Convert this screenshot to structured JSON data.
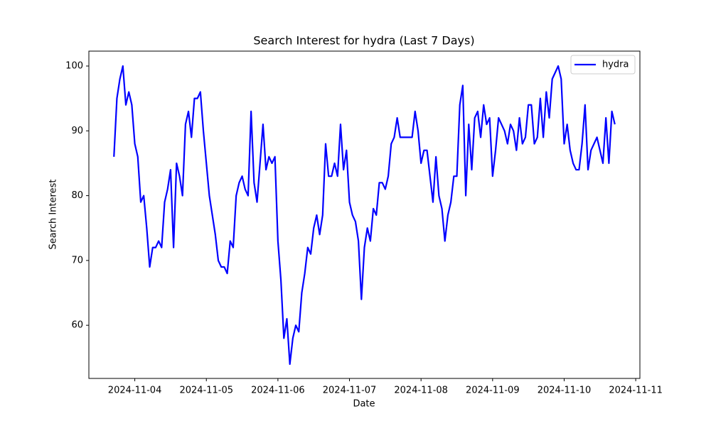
{
  "chart_data": {
    "type": "line",
    "title": "Search Interest for hydra (Last 7 Days)",
    "xlabel": "Date",
    "ylabel": "Search Interest",
    "x": [
      "2024-11-03T17:00",
      "2024-11-03T18:00",
      "2024-11-03T19:00",
      "2024-11-03T20:00",
      "2024-11-03T21:00",
      "2024-11-03T22:00",
      "2024-11-03T23:00",
      "2024-11-04T00:00",
      "2024-11-04T01:00",
      "2024-11-04T02:00",
      "2024-11-04T03:00",
      "2024-11-04T04:00",
      "2024-11-04T05:00",
      "2024-11-04T06:00",
      "2024-11-04T07:00",
      "2024-11-04T08:00",
      "2024-11-04T09:00",
      "2024-11-04T10:00",
      "2024-11-04T11:00",
      "2024-11-04T12:00",
      "2024-11-04T13:00",
      "2024-11-04T14:00",
      "2024-11-04T15:00",
      "2024-11-04T16:00",
      "2024-11-04T17:00",
      "2024-11-04T18:00",
      "2024-11-04T19:00",
      "2024-11-04T20:00",
      "2024-11-04T21:00",
      "2024-11-04T22:00",
      "2024-11-04T23:00",
      "2024-11-05T00:00",
      "2024-11-05T01:00",
      "2024-11-05T02:00",
      "2024-11-05T03:00",
      "2024-11-05T04:00",
      "2024-11-05T05:00",
      "2024-11-05T06:00",
      "2024-11-05T07:00",
      "2024-11-05T08:00",
      "2024-11-05T09:00",
      "2024-11-05T10:00",
      "2024-11-05T11:00",
      "2024-11-05T12:00",
      "2024-11-05T13:00",
      "2024-11-05T14:00",
      "2024-11-05T15:00",
      "2024-11-05T16:00",
      "2024-11-05T17:00",
      "2024-11-05T18:00",
      "2024-11-05T19:00",
      "2024-11-05T20:00",
      "2024-11-05T21:00",
      "2024-11-05T22:00",
      "2024-11-05T23:00",
      "2024-11-06T00:00",
      "2024-11-06T01:00",
      "2024-11-06T02:00",
      "2024-11-06T03:00",
      "2024-11-06T04:00",
      "2024-11-06T05:00",
      "2024-11-06T06:00",
      "2024-11-06T07:00",
      "2024-11-06T08:00",
      "2024-11-06T09:00",
      "2024-11-06T10:00",
      "2024-11-06T11:00",
      "2024-11-06T12:00",
      "2024-11-06T13:00",
      "2024-11-06T14:00",
      "2024-11-06T15:00",
      "2024-11-06T16:00",
      "2024-11-06T17:00",
      "2024-11-06T18:00",
      "2024-11-06T19:00",
      "2024-11-06T20:00",
      "2024-11-06T21:00",
      "2024-11-06T22:00",
      "2024-11-06T23:00",
      "2024-11-07T00:00",
      "2024-11-07T01:00",
      "2024-11-07T02:00",
      "2024-11-07T03:00",
      "2024-11-07T04:00",
      "2024-11-07T05:00",
      "2024-11-07T06:00",
      "2024-11-07T07:00",
      "2024-11-07T08:00",
      "2024-11-07T09:00",
      "2024-11-07T10:00",
      "2024-11-07T11:00",
      "2024-11-07T12:00",
      "2024-11-07T13:00",
      "2024-11-07T14:00",
      "2024-11-07T15:00",
      "2024-11-07T16:00",
      "2024-11-07T17:00",
      "2024-11-07T18:00",
      "2024-11-07T19:00",
      "2024-11-07T20:00",
      "2024-11-07T21:00",
      "2024-11-07T22:00",
      "2024-11-07T23:00",
      "2024-11-08T00:00",
      "2024-11-08T01:00",
      "2024-11-08T02:00",
      "2024-11-08T03:00",
      "2024-11-08T04:00",
      "2024-11-08T05:00",
      "2024-11-08T06:00",
      "2024-11-08T07:00",
      "2024-11-08T08:00",
      "2024-11-08T09:00",
      "2024-11-08T10:00",
      "2024-11-08T11:00",
      "2024-11-08T12:00",
      "2024-11-08T13:00",
      "2024-11-08T14:00",
      "2024-11-08T15:00",
      "2024-11-08T16:00",
      "2024-11-08T17:00",
      "2024-11-08T18:00",
      "2024-11-08T19:00",
      "2024-11-08T20:00",
      "2024-11-08T21:00",
      "2024-11-08T22:00",
      "2024-11-08T23:00",
      "2024-11-09T00:00",
      "2024-11-09T01:00",
      "2024-11-09T02:00",
      "2024-11-09T03:00",
      "2024-11-09T04:00",
      "2024-11-09T05:00",
      "2024-11-09T06:00",
      "2024-11-09T07:00",
      "2024-11-09T08:00",
      "2024-11-09T09:00",
      "2024-11-09T10:00",
      "2024-11-09T11:00",
      "2024-11-09T12:00",
      "2024-11-09T13:00",
      "2024-11-09T14:00",
      "2024-11-09T15:00",
      "2024-11-09T16:00",
      "2024-11-09T17:00",
      "2024-11-09T18:00",
      "2024-11-09T19:00",
      "2024-11-09T20:00",
      "2024-11-09T21:00",
      "2024-11-09T22:00",
      "2024-11-09T23:00",
      "2024-11-10T00:00",
      "2024-11-10T01:00",
      "2024-11-10T02:00",
      "2024-11-10T03:00",
      "2024-11-10T04:00",
      "2024-11-10T05:00",
      "2024-11-10T06:00",
      "2024-11-10T07:00",
      "2024-11-10T08:00",
      "2024-11-10T09:00",
      "2024-11-10T10:00",
      "2024-11-10T11:00",
      "2024-11-10T12:00",
      "2024-11-10T13:00",
      "2024-11-10T14:00",
      "2024-11-10T15:00",
      "2024-11-10T16:00",
      "2024-11-10T17:00"
    ],
    "series": [
      {
        "name": "hydra",
        "color": "#0000ff",
        "values": [
          86,
          95,
          98,
          100,
          94,
          96,
          94,
          88,
          86,
          79,
          80,
          75,
          69,
          72,
          72,
          73,
          72,
          79,
          81,
          84,
          72,
          85,
          83,
          80,
          91,
          93,
          89,
          95,
          95,
          96,
          90,
          85,
          80,
          77,
          74,
          70,
          69,
          69,
          68,
          73,
          72,
          80,
          82,
          83,
          81,
          80,
          93,
          82,
          79,
          85,
          91,
          84,
          86,
          85,
          86,
          73,
          67,
          58,
          61,
          54,
          58,
          60,
          59,
          65,
          68,
          72,
          71,
          75,
          77,
          74,
          77,
          88,
          83,
          83,
          85,
          83,
          91,
          84,
          87,
          79,
          77,
          76,
          73,
          64,
          72,
          75,
          73,
          78,
          77,
          82,
          82,
          81,
          83,
          88,
          89,
          92,
          89,
          89,
          89,
          89,
          89,
          93,
          90,
          85,
          87,
          87,
          83,
          79,
          86,
          80,
          78,
          73,
          77,
          79,
          83,
          83,
          94,
          97,
          80,
          91,
          84,
          92,
          93,
          89,
          94,
          91,
          92,
          83,
          87,
          92,
          91,
          90,
          88,
          91,
          90,
          87,
          92,
          88,
          89,
          94,
          94,
          88,
          89,
          95,
          89,
          96,
          92,
          98,
          99,
          100,
          98,
          88,
          91,
          87,
          85,
          84,
          84,
          88,
          94,
          84,
          87,
          88,
          89,
          87,
          85,
          92,
          85,
          93,
          91
        ]
      }
    ],
    "xlim": [
      "2024-11-03T08:36",
      "2024-11-11T01:24"
    ],
    "xticks": [
      "2024-11-04",
      "2024-11-05",
      "2024-11-06",
      "2024-11-07",
      "2024-11-08",
      "2024-11-09",
      "2024-11-10",
      "2024-11-11"
    ],
    "ylim": [
      51.8,
      102.3
    ],
    "yticks": [
      60,
      70,
      80,
      90,
      100
    ],
    "legend": "upper right"
  }
}
